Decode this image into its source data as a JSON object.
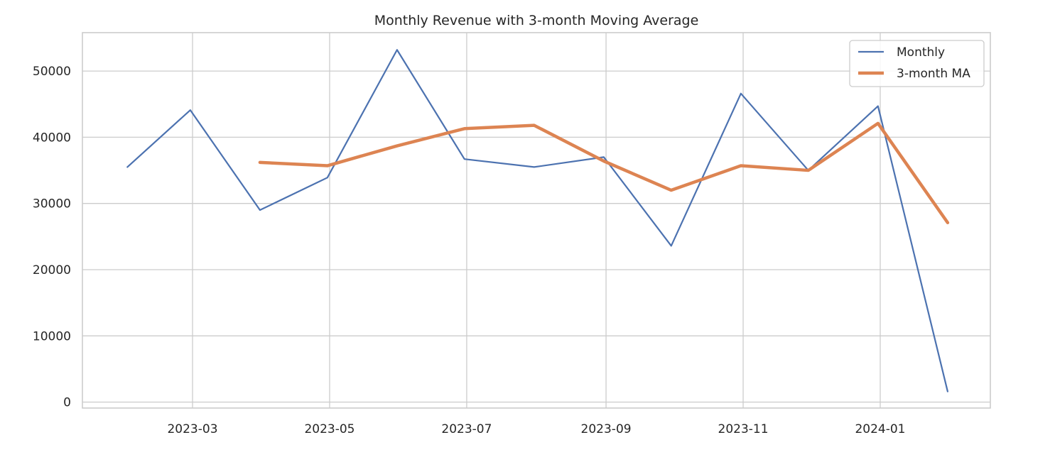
{
  "chart_data": {
    "type": "line",
    "title": "Monthly Revenue with 3-month Moving Average",
    "xlabel": "",
    "ylabel": "",
    "x": [
      "2023-01-31",
      "2023-02-28",
      "2023-03-31",
      "2023-04-30",
      "2023-05-31",
      "2023-06-30",
      "2023-07-31",
      "2023-08-31",
      "2023-09-30",
      "2023-10-31",
      "2023-11-30",
      "2023-12-31",
      "2024-01-31"
    ],
    "series": [
      {
        "name": "Monthly",
        "color": "#4c72b0",
        "values": [
          35500,
          44100,
          29000,
          33900,
          53200,
          36700,
          35500,
          37000,
          23600,
          46600,
          35000,
          44700,
          1600
        ]
      },
      {
        "name": "3-month MA",
        "color": "#dd8452",
        "values": [
          null,
          null,
          36200,
          35700,
          38700,
          41300,
          41800,
          36400,
          32000,
          35700,
          35000,
          42100,
          27100
        ]
      }
    ],
    "xlim": [
      "2023-01-11",
      "2024-02-19"
    ],
    "ylim": [
      -900,
      55800
    ],
    "x_ticks": [
      "2023-03-01",
      "2023-05-01",
      "2023-07-01",
      "2023-09-01",
      "2023-11-01",
      "2024-01-01"
    ],
    "x_tick_labels": [
      "2023-03",
      "2023-05",
      "2023-07",
      "2023-09",
      "2023-11",
      "2024-01"
    ],
    "y_ticks": [
      0,
      10000,
      20000,
      30000,
      40000,
      50000
    ],
    "y_tick_labels": [
      "0",
      "10000",
      "20000",
      "30000",
      "40000",
      "50000"
    ],
    "grid": true,
    "legend_position": "top-right"
  }
}
